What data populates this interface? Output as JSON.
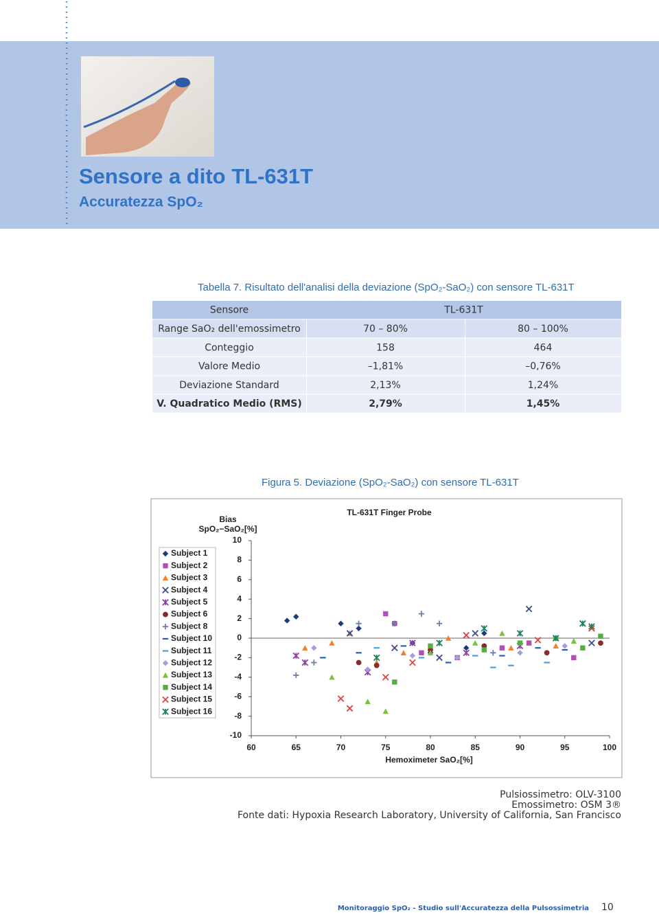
{
  "header": {
    "title": "Sensore a dito TL-631T",
    "subtitle": "Accuratezza SpO₂"
  },
  "table": {
    "caption": "Tabella 7. Risultato dell'analisi della deviazione (SpO₂-SaO₂) con sensore TL-631T",
    "header": [
      "Sensore",
      "TL-631T"
    ],
    "rows": [
      [
        "Range SaO₂ dell'emossimetro",
        "70 – 80%",
        "80 – 100%"
      ],
      [
        "Conteggio",
        "158",
        "464"
      ],
      [
        "Valore Medio",
        "–1,81%",
        "–0,76%"
      ],
      [
        "Deviazione Standard",
        "2,13%",
        "1,24%"
      ],
      [
        "V. Quadratico Medio (RMS)",
        "2,79%",
        "1,45%"
      ]
    ]
  },
  "figure": {
    "caption": "Figura 5. Deviazione (SpO₂-SaO₂) con sensore TL-631T"
  },
  "chart_data": {
    "type": "scatter",
    "title": "TL-631T Finger Probe",
    "y_label": [
      "Bias",
      "SpO₂−SaO₂[%]"
    ],
    "x_label": "Hemoximeter SaO₂[%]",
    "xlim": [
      60,
      100
    ],
    "xticks": [
      60,
      65,
      70,
      75,
      80,
      85,
      90,
      95,
      100
    ],
    "ylim": [
      -10,
      10
    ],
    "yticks": [
      -10,
      -8,
      -6,
      -4,
      -2,
      0,
      2,
      4,
      6,
      8,
      10
    ],
    "zero_line": true,
    "legend": "left",
    "series": [
      {
        "name": "Subject 1",
        "color": "#1f3a7a",
        "marker": "diamond",
        "x": [
          64,
          65,
          70,
          72,
          78,
          80,
          84,
          86
        ],
        "y": [
          1.8,
          2.2,
          1.5,
          1.0,
          -0.5,
          -1.5,
          -1.0,
          0.5
        ]
      },
      {
        "name": "Subject 2",
        "color": "#b050b0",
        "marker": "square",
        "x": [
          75,
          76,
          79,
          83,
          88,
          91,
          96
        ],
        "y": [
          2.5,
          1.5,
          -1.5,
          -2.0,
          -1.0,
          -0.5,
          -2.0
        ]
      },
      {
        "name": "Subject 3",
        "color": "#f08030",
        "marker": "triangle",
        "x": [
          66,
          69,
          71,
          74,
          77,
          82,
          89,
          94
        ],
        "y": [
          -1.0,
          -0.5,
          0.5,
          -2.5,
          -1.5,
          0.0,
          -1.0,
          -0.8
        ]
      },
      {
        "name": "Subject 4",
        "color": "#3a4a8a",
        "marker": "x",
        "x": [
          71,
          76,
          81,
          85,
          91,
          97,
          98
        ],
        "y": [
          0.5,
          -1.0,
          -2.0,
          0.5,
          3.0,
          1.5,
          -0.5
        ]
      },
      {
        "name": "Subject 5",
        "color": "#9040a0",
        "marker": "asterisk",
        "x": [
          65,
          66,
          73,
          78,
          84,
          90
        ],
        "y": [
          -1.8,
          -2.5,
          -3.5,
          -0.5,
          -1.5,
          -0.8
        ]
      },
      {
        "name": "Subject 6",
        "color": "#8a2a2a",
        "marker": "circle",
        "x": [
          72,
          74,
          80,
          86,
          93,
          99
        ],
        "y": [
          -2.5,
          -2.8,
          -1.2,
          -0.8,
          -1.5,
          -0.5
        ]
      },
      {
        "name": "Subject 8",
        "color": "#6a7fa8",
        "marker": "plus",
        "x": [
          65,
          67,
          72,
          76,
          79,
          81,
          87
        ],
        "y": [
          -3.8,
          -2.5,
          1.5,
          1.5,
          2.5,
          1.5,
          -1.5
        ]
      },
      {
        "name": "Subject 10",
        "color": "#2060c0",
        "marker": "dash",
        "x": [
          68,
          72,
          77,
          82,
          88,
          92,
          95
        ],
        "y": [
          -2.0,
          -1.5,
          -0.8,
          -2.5,
          -1.8,
          -1.0,
          -1.2
        ]
      },
      {
        "name": "Subject 11",
        "color": "#40a0e0",
        "marker": "dash",
        "x": [
          74,
          79,
          85,
          87,
          89,
          93
        ],
        "y": [
          -1.0,
          -2.0,
          -1.8,
          -3.0,
          -2.8,
          -2.5
        ]
      },
      {
        "name": "Subject 12",
        "color": "#a0a0e0",
        "marker": "diamond",
        "x": [
          67,
          73,
          78,
          83,
          90,
          95
        ],
        "y": [
          -1.0,
          -3.2,
          -1.8,
          -2.0,
          -1.5,
          -0.8
        ]
      },
      {
        "name": "Subject 13",
        "color": "#7cc040",
        "marker": "triangle",
        "x": [
          69,
          73,
          75,
          80,
          85,
          88,
          96
        ],
        "y": [
          -4.0,
          -6.5,
          -7.5,
          -1.5,
          -0.5,
          0.5,
          -0.3
        ]
      },
      {
        "name": "Subject 14",
        "color": "#50b040",
        "marker": "square",
        "x": [
          76,
          80,
          86,
          90,
          94,
          97,
          99
        ],
        "y": [
          -4.5,
          -0.8,
          -1.2,
          -0.5,
          0.0,
          -1.0,
          0.2
        ]
      },
      {
        "name": "Subject 15",
        "color": "#e04040",
        "marker": "x",
        "x": [
          70,
          71,
          75,
          78,
          84,
          92,
          98
        ],
        "y": [
          -6.2,
          -7.2,
          -4.0,
          -2.5,
          0.3,
          -0.2,
          1.0
        ]
      },
      {
        "name": "Subject 16",
        "color": "#208060",
        "marker": "asterisk",
        "x": [
          74,
          81,
          86,
          90,
          94,
          97,
          98
        ],
        "y": [
          -2.0,
          -0.5,
          1.0,
          0.5,
          0.0,
          1.5,
          1.2
        ]
      }
    ]
  },
  "notes": [
    "Pulsiossimetro: OLV-3100",
    "Emossimetro: OSM 3®",
    "Fonte dati: Hypoxia Research Laboratory, University of California, San Francisco"
  ],
  "footer": {
    "text": "Monitoraggio SpO₂ - Studio sull'Accuratezza della Pulsossimetria",
    "page": "10"
  }
}
